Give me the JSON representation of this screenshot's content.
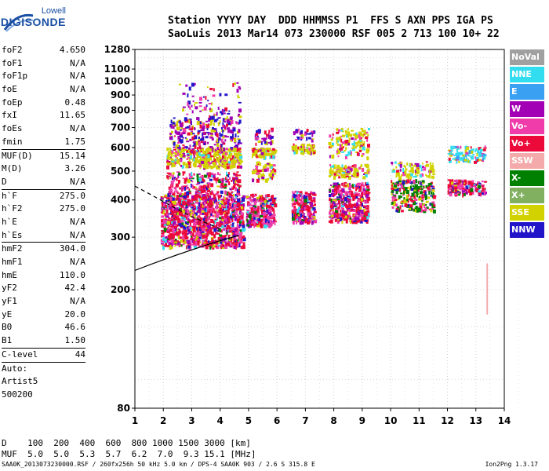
{
  "logo": {
    "line1": "Lowell",
    "line2": "DIGISONDE"
  },
  "header": {
    "labels": "Station YYYY DAY  DDD HHMMSS P1  FFS S AXN PPS IGA PS",
    "values": "SaoLuis 2013 Mar14 073 230000 RSF 005 2 713 100 10+ 22"
  },
  "params": [
    {
      "k": "foF2",
      "v": "4.650"
    },
    {
      "k": "foF1",
      "v": "N/A"
    },
    {
      "k": "foF1p",
      "v": "N/A"
    },
    {
      "k": "foE",
      "v": "N/A"
    },
    {
      "k": "foEp",
      "v": "0.48"
    },
    {
      "k": "fxI",
      "v": "11.65"
    },
    {
      "k": "foEs",
      "v": "N/A"
    },
    {
      "k": "fmin",
      "v": "1.75"
    },
    {
      "k": "MUF(D)",
      "v": "15.14"
    },
    {
      "k": "M(D)",
      "v": "3.26"
    },
    {
      "k": "D",
      "v": "N/A"
    },
    {
      "k": "h`F",
      "v": "275.0"
    },
    {
      "k": "h`F2",
      "v": "275.0"
    },
    {
      "k": "h`E",
      "v": "N/A"
    },
    {
      "k": "h`Es",
      "v": "N/A"
    },
    {
      "k": "hmF2",
      "v": "304.0"
    },
    {
      "k": "hmF1",
      "v": "N/A"
    },
    {
      "k": "hmE",
      "v": "110.0"
    },
    {
      "k": "yF2",
      "v": "42.4"
    },
    {
      "k": "yF1",
      "v": "N/A"
    },
    {
      "k": "yE",
      "v": "20.0"
    },
    {
      "k": "B0",
      "v": "46.6"
    },
    {
      "k": "B1",
      "v": "1.50"
    },
    {
      "k": "C-level",
      "v": "44"
    },
    {
      "k": "Auto:",
      "v": ""
    },
    {
      "k": "Artist5",
      "v": ""
    },
    {
      "k": "500200",
      "v": ""
    }
  ],
  "legend": [
    {
      "label": "NoVal",
      "color": "#a0a0a0"
    },
    {
      "label": "NNE",
      "color": "#33ddf0"
    },
    {
      "label": "E",
      "color": "#3aa0f2"
    },
    {
      "label": "W",
      "color": "#a200b4"
    },
    {
      "label": "Vo-",
      "color": "#f03caa"
    },
    {
      "label": "Vo+",
      "color": "#ec0a3a"
    },
    {
      "label": "SSW",
      "color": "#f4aaaa"
    },
    {
      "label": "X-",
      "color": "#008000"
    },
    {
      "label": "X+",
      "color": "#80b060"
    },
    {
      "label": "SSE",
      "color": "#d2d200"
    },
    {
      "label": "NNW",
      "color": "#2214c8"
    }
  ],
  "muf_table": {
    "row1": "D    100  200  400  600  800 1000 1500 3000 [km]",
    "row2": "MUF  5.0  5.0  5.3  5.7  6.2  7.0  9.3 15.1 [MHz]"
  },
  "footer": {
    "left": "SAA0K_2013073230000.RSF / 260fx256h 50 kHz 5.0 km / DPS-4 SAA0K 903 / 2.6 S 315.8 E",
    "right": "Ion2Png 1.3.17"
  },
  "chart_data": {
    "type": "scatter",
    "title": "",
    "xlabel": "",
    "ylabel": "",
    "xlim": [
      1,
      14
    ],
    "ylim": [
      80,
      1280
    ],
    "x_ticks": [
      1,
      2,
      3,
      4,
      5,
      6,
      7,
      8,
      9,
      10,
      11,
      12,
      13,
      14
    ],
    "y_ticks": [
      80,
      200,
      300,
      400,
      500,
      600,
      700,
      800,
      900,
      1000,
      1100,
      1280
    ],
    "y_scale": "log",
    "grid": true,
    "clusters": [
      {
        "name": "F2 main trace",
        "x_range": [
          1.9,
          4.8
        ],
        "y_range": [
          280,
          420
        ],
        "color": "#ec0a3a"
      },
      {
        "name": "F2 second hop",
        "x_range": [
          2.1,
          4.7
        ],
        "y_range": [
          520,
          600
        ],
        "color": "#d2d200"
      },
      {
        "name": "W echoes",
        "x_range": [
          2.2,
          4.7
        ],
        "y_range": [
          620,
          900
        ],
        "color": "#a200b4"
      },
      {
        "name": "spread F 5-6",
        "x_range": [
          4.9,
          5.9
        ],
        "y_range": [
          330,
          420
        ],
        "color": "#ec0a3a"
      },
      {
        "name": "spread F 6.5-7.3",
        "x_range": [
          6.5,
          7.3
        ],
        "y_range": [
          340,
          430
        ],
        "color": "#ec0a3a"
      },
      {
        "name": "spread F 7.8-9.2",
        "x_range": [
          7.8,
          9.2
        ],
        "y_range": [
          340,
          460
        ],
        "color": "#ec0a3a"
      },
      {
        "name": "spread F 10-11.5",
        "x_range": [
          10.0,
          11.5
        ],
        "y_range": [
          370,
          470
        ],
        "color": "#008000"
      },
      {
        "name": "high freq trace",
        "x_range": [
          12.0,
          13.3
        ],
        "y_range": [
          420,
          470
        ],
        "color": "#a200b4"
      },
      {
        "name": "NNE echoes 12-13",
        "x_range": [
          12.0,
          13.3
        ],
        "y_range": [
          540,
          610
        ],
        "color": "#33ddf0"
      }
    ],
    "profile_curves": [
      {
        "name": "solid",
        "x": [
          1,
          1.5,
          2.0,
          2.5,
          3.0,
          3.5,
          4.0,
          4.65
        ],
        "y": [
          232,
          242,
          252,
          262,
          272,
          282,
          292,
          304
        ]
      },
      {
        "name": "dashed",
        "x": [
          1,
          1.5,
          2.0,
          2.5,
          3.0,
          3.5,
          4.0
        ],
        "y": [
          445,
          420,
          395,
          372,
          352,
          335,
          320
        ]
      }
    ],
    "ssw_marker": {
      "x": 13.4,
      "y_range": [
        165,
        245
      ]
    }
  }
}
